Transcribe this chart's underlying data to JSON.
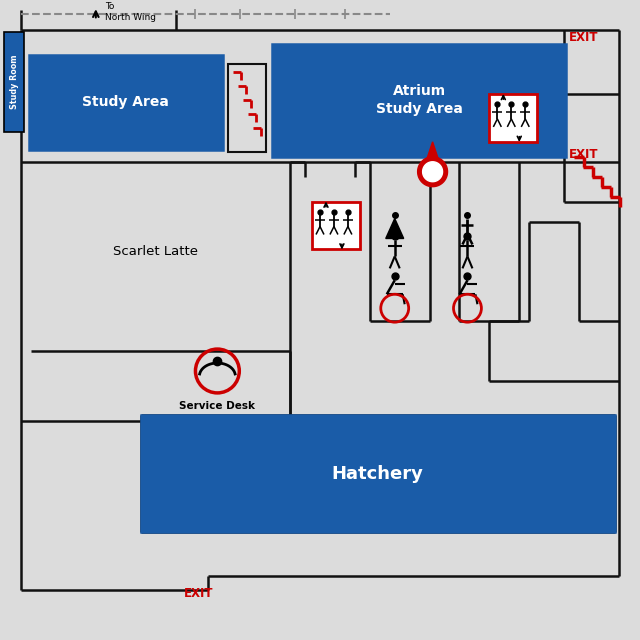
{
  "bg_color": "#dcdcdc",
  "wall_color": "#111111",
  "room_fill": "#1a5ca8",
  "white": "#ffffff",
  "exit_color": "#cc0000",
  "study_room_bg": "#1a5ca8",
  "north_wing_text": "To\nNorth Wing",
  "study_area_label": "Study Area",
  "atrium_label": "Atrium\nStudy Area",
  "hatchery_label": "Hatchery",
  "scarlet_latte_label": "Scarlet Latte",
  "service_desk_label": "Service Desk",
  "exit_label": "EXIT",
  "study_room_label": "Study Room",
  "lw": 1.8
}
